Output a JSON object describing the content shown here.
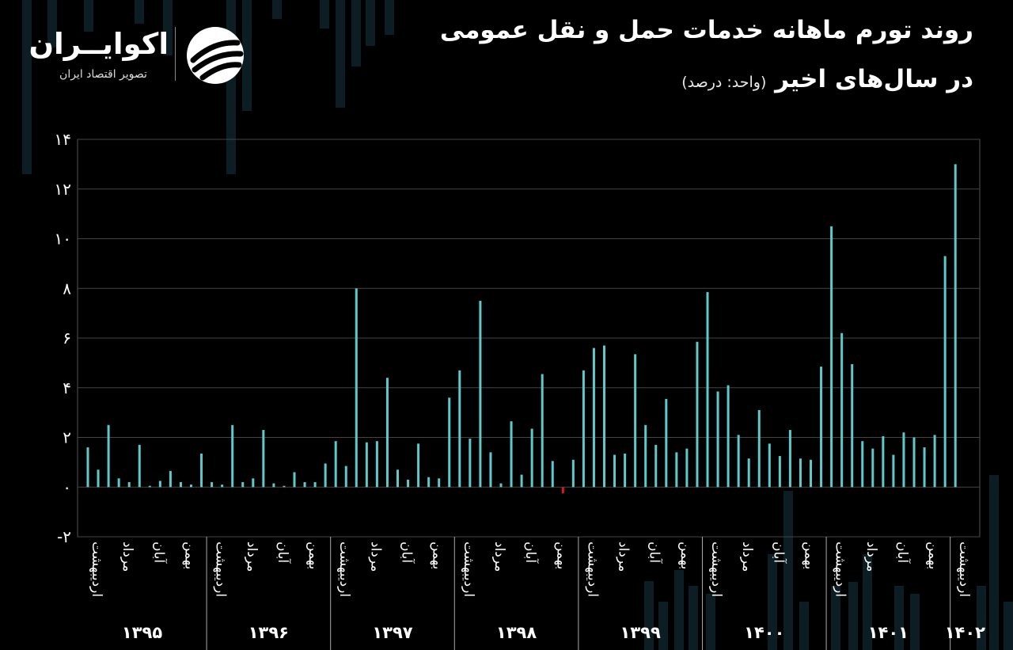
{
  "title": "روند تورم ماهانه خدمات حمل و نقل عمومی",
  "subtitle_main": "در سال‌های اخیر",
  "subtitle_unit": "(واحد: درصد)",
  "logo": {
    "name": "اکوایــران",
    "tagline": "تصویر اقتصاد ایران",
    "icon": "ecoiran-logo-icon"
  },
  "colors": {
    "background": "#000000",
    "bar": "#5ec9c9",
    "negative": "#e0161b",
    "grid": "#444444"
  },
  "chart_data": {
    "type": "bar",
    "title": "روند تورم ماهانه خدمات حمل و نقل عمومی",
    "ylabel": "",
    "ylim": [
      -2,
      14
    ],
    "yticks": [
      -2,
      0,
      2,
      4,
      6,
      8,
      10,
      12,
      14
    ],
    "ytick_labels": [
      "-۲",
      "۰",
      "۲",
      "۴",
      "۶",
      "۸",
      "۱۰",
      "۱۲",
      "۱۴"
    ],
    "grid": true,
    "month_labels": [
      "اردیبهشت",
      "مرداد",
      "آبان",
      "بهمن"
    ],
    "groups": [
      {
        "year": "۱۳۹۵",
        "values": [
          1.6,
          0.7,
          2.5,
          0.35,
          0.2,
          1.7,
          0.05,
          0.25,
          0.65,
          0.2,
          0.1,
          1.35
        ]
      },
      {
        "year": "۱۳۹۶",
        "values": [
          0.2,
          0.1,
          2.5,
          0.2,
          0.35,
          2.3,
          0.15,
          0.05,
          0.6,
          0.2,
          0.2,
          0.95
        ]
      },
      {
        "year": "۱۳۹۷",
        "values": [
          1.85,
          0.85,
          8.0,
          1.8,
          1.85,
          4.4,
          0.7,
          0.3,
          1.75,
          0.4,
          0.35,
          3.6
        ]
      },
      {
        "year": "۱۳۹۸",
        "values": [
          4.7,
          1.95,
          7.5,
          1.4,
          0.15,
          2.65,
          0.5,
          2.35,
          4.55,
          1.05,
          -0.25,
          1.1
        ]
      },
      {
        "year": "۱۳۹۹",
        "values": [
          4.7,
          5.6,
          5.7,
          1.3,
          1.35,
          5.35,
          2.5,
          1.7,
          3.55,
          1.4,
          1.55,
          5.85
        ]
      },
      {
        "year": "۱۴۰۰",
        "values": [
          7.85,
          3.85,
          4.1,
          2.1,
          1.15,
          3.1,
          1.75,
          1.25,
          2.3,
          1.15,
          1.1,
          4.85
        ]
      },
      {
        "year": "۱۴۰۱",
        "values": [
          10.5,
          6.2,
          4.95,
          1.85,
          1.55,
          2.05,
          1.3,
          2.2,
          2.0,
          1.6,
          2.1,
          9.3
        ]
      },
      {
        "year": "۱۴۰۲",
        "values": [
          13.0
        ]
      }
    ]
  }
}
